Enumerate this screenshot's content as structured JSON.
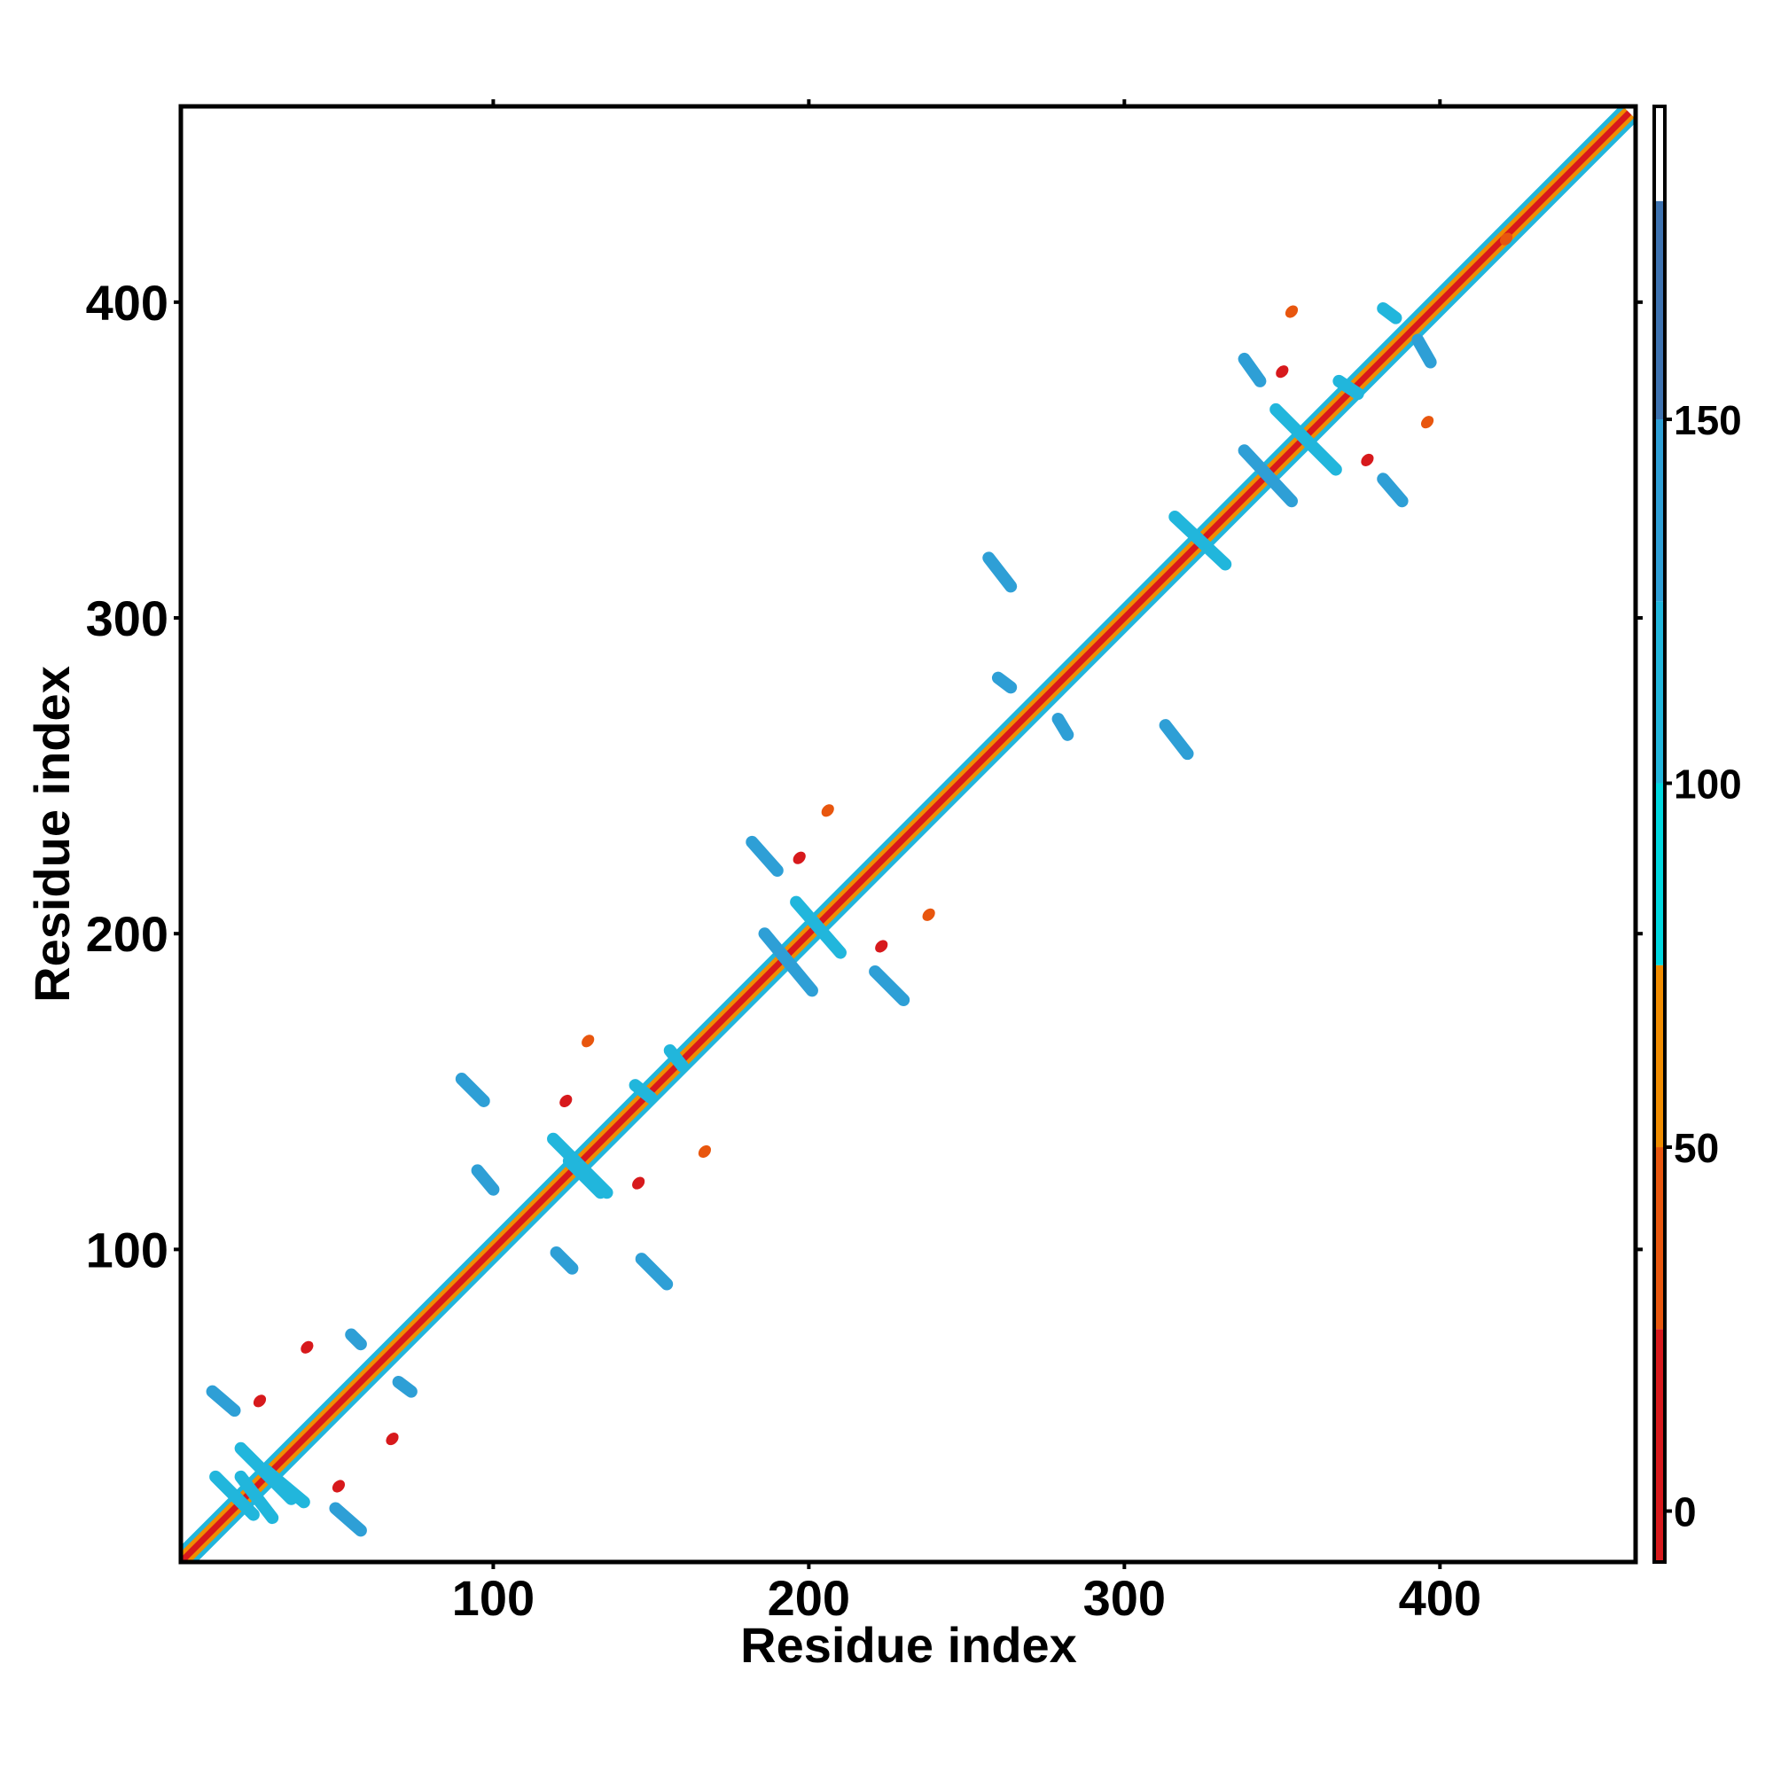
{
  "chart_data": {
    "type": "heatmap",
    "subtype": "residue contact map",
    "title": "",
    "xlabel": "Residue index",
    "ylabel": "Residue index",
    "xlim": [
      1,
      462
    ],
    "ylim": [
      1,
      462
    ],
    "xticks": [
      100,
      200,
      300,
      400
    ],
    "yticks": [
      100,
      200,
      300,
      400
    ],
    "xtick_labels": [
      "100",
      "200",
      "300",
      "400"
    ],
    "ytick_labels": [
      "100",
      "200",
      "300",
      "400"
    ],
    "grid": false,
    "legend": "colorbar right",
    "colorbar": {
      "ticks": [
        0,
        50,
        100,
        150
      ],
      "tick_labels": [
        "0",
        "50",
        "100",
        "150"
      ],
      "range": [
        -7,
        193
      ],
      "bands": [
        {
          "from": -7,
          "to": 25,
          "color": "#d7191c"
        },
        {
          "from": 25,
          "to": 50,
          "color": "#e8560e"
        },
        {
          "from": 50,
          "to": 75,
          "color": "#f08c00"
        },
        {
          "from": 75,
          "to": 100,
          "color": "#00d8e0"
        },
        {
          "from": 100,
          "to": 125,
          "color": "#21b6dc"
        },
        {
          "from": 125,
          "to": 150,
          "color": "#2e9fd6"
        },
        {
          "from": 150,
          "to": 180,
          "color": "#3d72b0"
        },
        {
          "from": 180,
          "to": 193,
          "color": "#ffffff"
        }
      ]
    },
    "diagonal": {
      "from": 1,
      "to": 460
    },
    "contact_segments": [
      {
        "x1": 11,
        "y1": 55,
        "x2": 18,
        "y2": 49,
        "value": 130
      },
      {
        "x1": 20,
        "y1": 37,
        "x2": 36,
        "y2": 21,
        "value": 110
      },
      {
        "x1": 12,
        "y1": 28,
        "x2": 24,
        "y2": 16,
        "value": 120
      },
      {
        "x1": 20,
        "y1": 28,
        "x2": 30,
        "y2": 15,
        "value": 115
      },
      {
        "x1": 28,
        "y1": 30,
        "x2": 40,
        "y2": 20,
        "value": 120
      },
      {
        "x1": 50,
        "y1": 18,
        "x2": 58,
        "y2": 11,
        "value": 130
      },
      {
        "x1": 55,
        "y1": 73,
        "x2": 58,
        "y2": 70,
        "value": 130
      },
      {
        "x1": 70,
        "y1": 58,
        "x2": 74,
        "y2": 55,
        "value": 130
      },
      {
        "x1": 90,
        "y1": 154,
        "x2": 97,
        "y2": 147,
        "value": 130
      },
      {
        "x1": 95,
        "y1": 125,
        "x2": 100,
        "y2": 119,
        "value": 130
      },
      {
        "x1": 120,
        "y1": 99,
        "x2": 125,
        "y2": 94,
        "value": 130
      },
      {
        "x1": 147,
        "y1": 97,
        "x2": 155,
        "y2": 89,
        "value": 130
      },
      {
        "x1": 119,
        "y1": 135,
        "x2": 136,
        "y2": 118,
        "value": 120
      },
      {
        "x1": 124,
        "y1": 128,
        "x2": 134,
        "y2": 118,
        "value": 115
      },
      {
        "x1": 145,
        "y1": 152,
        "x2": 150,
        "y2": 148,
        "value": 110
      },
      {
        "x1": 156,
        "y1": 163,
        "x2": 160,
        "y2": 158,
        "value": 115
      },
      {
        "x1": 182,
        "y1": 229,
        "x2": 190,
        "y2": 220,
        "value": 130
      },
      {
        "x1": 186,
        "y1": 200,
        "x2": 201,
        "y2": 182,
        "value": 125
      },
      {
        "x1": 196,
        "y1": 210,
        "x2": 210,
        "y2": 194,
        "value": 120
      },
      {
        "x1": 221,
        "y1": 188,
        "x2": 230,
        "y2": 179,
        "value": 130
      },
      {
        "x1": 257,
        "y1": 319,
        "x2": 264,
        "y2": 310,
        "value": 130
      },
      {
        "x1": 260,
        "y1": 281,
        "x2": 264,
        "y2": 278,
        "value": 125
      },
      {
        "x1": 279,
        "y1": 268,
        "x2": 282,
        "y2": 263,
        "value": 125
      },
      {
        "x1": 313,
        "y1": 266,
        "x2": 320,
        "y2": 257,
        "value": 130
      },
      {
        "x1": 316,
        "y1": 332,
        "x2": 332,
        "y2": 317,
        "value": 120
      },
      {
        "x1": 338,
        "y1": 382,
        "x2": 343,
        "y2": 375,
        "value": 130
      },
      {
        "x1": 338,
        "y1": 353,
        "x2": 353,
        "y2": 337,
        "value": 125
      },
      {
        "x1": 348,
        "y1": 366,
        "x2": 367,
        "y2": 347,
        "value": 110
      },
      {
        "x1": 382,
        "y1": 344,
        "x2": 388,
        "y2": 337,
        "value": 130
      },
      {
        "x1": 382,
        "y1": 398,
        "x2": 386,
        "y2": 395,
        "value": 120
      },
      {
        "x1": 393,
        "y1": 388,
        "x2": 397,
        "y2": 381,
        "value": 125
      },
      {
        "x1": 368,
        "y1": 375,
        "x2": 374,
        "y2": 371,
        "value": 110
      }
    ],
    "contact_patches": [
      {
        "x": 130,
        "y": 166,
        "value": 45
      },
      {
        "x": 167,
        "y": 131,
        "value": 45
      },
      {
        "x": 206,
        "y": 239,
        "value": 45
      },
      {
        "x": 238,
        "y": 206,
        "value": 45
      },
      {
        "x": 353,
        "y": 397,
        "value": 45
      },
      {
        "x": 396,
        "y": 362,
        "value": 45
      },
      {
        "x": 421,
        "y": 420,
        "value": 45
      },
      {
        "x": 123,
        "y": 147,
        "value": 15
      },
      {
        "x": 146,
        "y": 121,
        "value": 15
      },
      {
        "x": 51,
        "y": 25,
        "value": 15
      },
      {
        "x": 26,
        "y": 52,
        "value": 15
      },
      {
        "x": 223,
        "y": 196,
        "value": 15
      },
      {
        "x": 197,
        "y": 224,
        "value": 15
      },
      {
        "x": 350,
        "y": 378,
        "value": 15
      },
      {
        "x": 377,
        "y": 350,
        "value": 15
      },
      {
        "x": 41,
        "y": 69,
        "value": 15
      },
      {
        "x": 68,
        "y": 40,
        "value": 15
      }
    ]
  }
}
